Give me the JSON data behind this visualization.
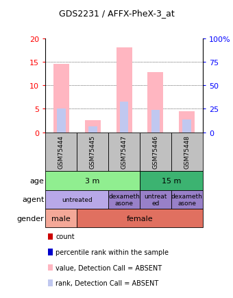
{
  "title": "GDS2231 / AFFX-PheX-3_at",
  "samples": [
    "GSM75444",
    "GSM75445",
    "GSM75447",
    "GSM75446",
    "GSM75448"
  ],
  "bar_values": [
    14.5,
    2.5,
    18.0,
    12.8,
    4.5
  ],
  "rank_values": [
    5.0,
    1.2,
    6.5,
    4.7,
    2.7
  ],
  "ylim": [
    0,
    20
  ],
  "yticks": [
    0,
    5,
    10,
    15,
    20
  ],
  "ytick_labels_left": [
    "0",
    "5",
    "10",
    "15",
    "20"
  ],
  "ytick_labels_right": [
    "0",
    "25",
    "50",
    "75",
    "100%"
  ],
  "age_groups": [
    {
      "label": "3 m",
      "start": 0,
      "end": 3,
      "color": "#90EE90"
    },
    {
      "label": "15 m",
      "start": 3,
      "end": 5,
      "color": "#3CB371"
    }
  ],
  "agent_groups": [
    {
      "label": "untreated",
      "start": 0,
      "end": 2,
      "color": "#B8A8E8"
    },
    {
      "label": "dexameth\nasone",
      "start": 2,
      "end": 3,
      "color": "#9880C8"
    },
    {
      "label": "untreat\ned",
      "start": 3,
      "end": 4,
      "color": "#9880C8"
    },
    {
      "label": "dexameth\nasone",
      "start": 4,
      "end": 5,
      "color": "#9880C8"
    }
  ],
  "gender_groups": [
    {
      "label": "male",
      "start": 0,
      "end": 1,
      "color": "#F4A898"
    },
    {
      "label": "female",
      "start": 1,
      "end": 5,
      "color": "#E07060"
    }
  ],
  "bar_color_value": "#FFB6C1",
  "bar_color_rank": "#C0C8F0",
  "bar_color_count": "#CC0000",
  "bar_color_percentile": "#0000CC",
  "sample_box_color": "#C0C0C0",
  "legend_items": [
    {
      "color": "#CC0000",
      "label": "count"
    },
    {
      "color": "#0000CC",
      "label": "percentile rank within the sample"
    },
    {
      "color": "#FFB6C1",
      "label": "value, Detection Call = ABSENT"
    },
    {
      "color": "#C0C8F0",
      "label": "rank, Detection Call = ABSENT"
    }
  ]
}
